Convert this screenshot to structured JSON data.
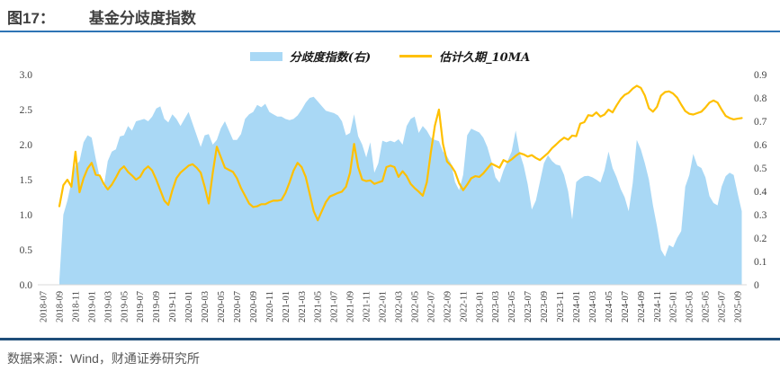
{
  "header": {
    "figure_label": "图17：",
    "title": "基金分歧度指数"
  },
  "legend": {
    "items": [
      {
        "label": "分歧度指数(右)",
        "type": "area",
        "color": "#a9d8f5"
      },
      {
        "label": "估计久期_10MA",
        "type": "line",
        "color": "#ffc000"
      }
    ]
  },
  "footer": {
    "source": "数据来源：Wind，财通证券研究所"
  },
  "colors": {
    "area_fill": "#a9d8f5",
    "line_stroke": "#ffc000",
    "top_rule": "#2e74b5",
    "bottom_rule": "#1f4e79",
    "axis_text": "#404040",
    "baseline": "#d9d9d9"
  },
  "chart_data": {
    "type": "area+line combo",
    "title": "基金分歧度指数",
    "grid": false,
    "legend_position": "top",
    "x_axis": {
      "first": "2018-07",
      "last": "2025-09",
      "tick_interval_months": 2,
      "tick_labels": [
        "2018-07",
        "2018-09",
        "2018-11",
        "2019-01",
        "2019-03",
        "2019-05",
        "2019-07",
        "2019-09",
        "2019-11",
        "2020-01",
        "2020-03",
        "2020-05",
        "2020-07",
        "2020-09",
        "2020-11",
        "2021-01",
        "2021-03",
        "2021-05",
        "2021-07",
        "2021-09",
        "2021-11",
        "2022-01",
        "2022-03",
        "2022-05",
        "2022-07",
        "2022-09",
        "2022-11",
        "2023-01",
        "2023-03",
        "2023-05",
        "2023-07",
        "2023-09",
        "2023-11",
        "2024-01",
        "2024-03",
        "2024-05",
        "2024-07",
        "2024-09",
        "2024-11",
        "2025-01",
        "2025-03",
        "2025-05",
        "2025-07",
        "2025-09"
      ]
    },
    "left_axis": {
      "min": 0,
      "max": 3.0,
      "step": 0.5,
      "tick_labels": [
        "0.0",
        "0.5",
        "1.0",
        "1.5",
        "2.0",
        "2.5",
        "3.0"
      ]
    },
    "right_axis": {
      "min": 0,
      "max": 0.9,
      "step": 0.1,
      "tick_labels": [
        "0",
        "0.1",
        "0.2",
        "0.3",
        "0.4",
        "0.5",
        "0.6",
        "0.7",
        "0.8",
        "0.9"
      ]
    },
    "series": [
      {
        "name": "估计久期_10MA",
        "type": "line",
        "axis": "left",
        "color": "#ffc000",
        "start_offset_months": 2,
        "step_months": 0.5,
        "values": [
          1.12,
          1.42,
          1.5,
          1.4,
          1.9,
          1.32,
          1.52,
          1.66,
          1.74,
          1.57,
          1.56,
          1.44,
          1.36,
          1.43,
          1.53,
          1.64,
          1.69,
          1.61,
          1.56,
          1.5,
          1.54,
          1.64,
          1.69,
          1.63,
          1.5,
          1.35,
          1.2,
          1.14,
          1.35,
          1.52,
          1.6,
          1.65,
          1.7,
          1.72,
          1.67,
          1.6,
          1.4,
          1.16,
          1.6,
          1.97,
          1.82,
          1.67,
          1.64,
          1.61,
          1.52,
          1.38,
          1.27,
          1.16,
          1.11,
          1.12,
          1.15,
          1.15,
          1.18,
          1.2,
          1.2,
          1.21,
          1.31,
          1.46,
          1.63,
          1.74,
          1.68,
          1.54,
          1.3,
          1.05,
          0.92,
          1.05,
          1.18,
          1.26,
          1.285,
          1.31,
          1.33,
          1.4,
          1.6,
          2.01,
          1.68,
          1.5,
          1.48,
          1.49,
          1.44,
          1.46,
          1.48,
          1.68,
          1.7,
          1.68,
          1.54,
          1.62,
          1.55,
          1.44,
          1.38,
          1.33,
          1.27,
          1.46,
          1.89,
          2.27,
          2.5,
          2.01,
          1.76,
          1.7,
          1.61,
          1.45,
          1.35,
          1.43,
          1.52,
          1.55,
          1.54,
          1.59,
          1.66,
          1.73,
          1.7,
          1.67,
          1.78,
          1.75,
          1.79,
          1.84,
          1.88,
          1.86,
          1.83,
          1.85,
          1.81,
          1.78,
          1.83,
          1.88,
          1.95,
          2.0,
          2.055,
          2.1,
          2.07,
          2.13,
          2.12,
          2.3,
          2.32,
          2.42,
          2.41,
          2.46,
          2.4,
          2.43,
          2.5,
          2.46,
          2.56,
          2.65,
          2.71,
          2.74,
          2.8,
          2.84,
          2.81,
          2.7,
          2.52,
          2.47,
          2.54,
          2.7,
          2.75,
          2.76,
          2.73,
          2.67,
          2.57,
          2.48,
          2.44,
          2.43,
          2.45,
          2.47,
          2.53,
          2.6,
          2.63,
          2.6,
          2.5,
          2.41,
          2.38,
          2.36,
          2.37,
          2.38
        ]
      },
      {
        "name": "分歧度指数(右)",
        "type": "area",
        "axis": "right",
        "color": "#a9d8f5",
        "start_offset_months": 2,
        "step_months": 0.5,
        "values": [
          0.02,
          0.3,
          0.36,
          0.44,
          0.51,
          0.53,
          0.61,
          0.64,
          0.63,
          0.54,
          0.46,
          0.42,
          0.53,
          0.57,
          0.58,
          0.635,
          0.64,
          0.68,
          0.66,
          0.7,
          0.705,
          0.71,
          0.7,
          0.72,
          0.755,
          0.764,
          0.71,
          0.695,
          0.73,
          0.71,
          0.68,
          0.71,
          0.74,
          0.69,
          0.64,
          0.59,
          0.64,
          0.645,
          0.6,
          0.62,
          0.67,
          0.7,
          0.66,
          0.62,
          0.62,
          0.645,
          0.71,
          0.73,
          0.74,
          0.77,
          0.76,
          0.775,
          0.74,
          0.73,
          0.72,
          0.72,
          0.71,
          0.705,
          0.71,
          0.725,
          0.75,
          0.78,
          0.8,
          0.805,
          0.785,
          0.765,
          0.745,
          0.74,
          0.735,
          0.725,
          0.7,
          0.64,
          0.65,
          0.73,
          0.636,
          0.6,
          0.545,
          0.61,
          0.48,
          0.52,
          0.617,
          0.61,
          0.617,
          0.61,
          0.623,
          0.6,
          0.68,
          0.71,
          0.72,
          0.65,
          0.68,
          0.66,
          0.63,
          0.62,
          0.615,
          0.57,
          0.55,
          0.52,
          0.44,
          0.405,
          0.47,
          0.64,
          0.668,
          0.66,
          0.652,
          0.63,
          0.59,
          0.53,
          0.46,
          0.437,
          0.49,
          0.53,
          0.57,
          0.66,
          0.565,
          0.51,
          0.43,
          0.322,
          0.36,
          0.44,
          0.52,
          0.555,
          0.53,
          0.515,
          0.51,
          0.47,
          0.4,
          0.28,
          0.44,
          0.455,
          0.465,
          0.466,
          0.46,
          0.45,
          0.438,
          0.49,
          0.57,
          0.5,
          0.46,
          0.41,
          0.375,
          0.315,
          0.435,
          0.62,
          0.58,
          0.52,
          0.45,
          0.34,
          0.25,
          0.15,
          0.12,
          0.17,
          0.16,
          0.2,
          0.23,
          0.42,
          0.47,
          0.56,
          0.51,
          0.5,
          0.46,
          0.38,
          0.35,
          0.34,
          0.42,
          0.465,
          0.48,
          0.47,
          0.39,
          0.315
        ]
      }
    ]
  }
}
